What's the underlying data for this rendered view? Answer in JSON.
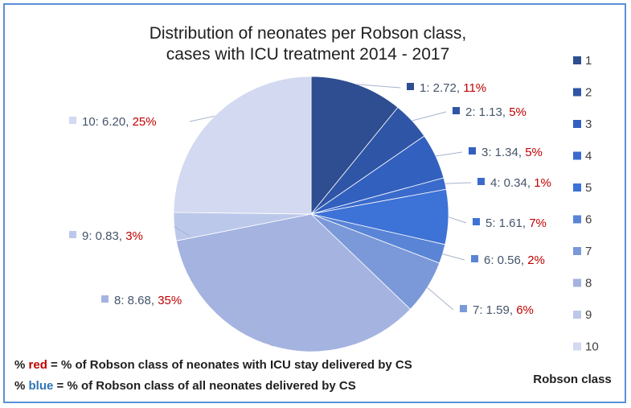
{
  "chart_data": {
    "type": "pie",
    "title_lines": [
      "Distribution of neonates per Robson class,",
      "cases with ICU treatment 2014 - 2017"
    ],
    "categories": [
      "1",
      "2",
      "3",
      "4",
      "5",
      "6",
      "7",
      "8",
      "9",
      "10"
    ],
    "values": [
      2.72,
      1.13,
      1.34,
      0.34,
      1.61,
      0.56,
      1.59,
      8.68,
      0.83,
      6.2
    ],
    "value_labels": [
      "2.72",
      "1.13",
      "1.34",
      "0.34",
      "1.61",
      "0.56",
      "1.59",
      "8.68",
      "0.83",
      "6.20"
    ],
    "percent_labels": [
      "11%",
      "5%",
      "5%",
      "1%",
      "7%",
      "2%",
      "6%",
      "35%",
      "3%",
      "25%"
    ],
    "colors": [
      "#2f4d91",
      "#2f55a6",
      "#3260bf",
      "#3a6bcc",
      "#3d72d6",
      "#5a85d6",
      "#7b99d8",
      "#a4b3e0",
      "#bcc8ea",
      "#d2d9f0"
    ],
    "label_value_color": "#44546a",
    "label_percent_color": "#c00000",
    "legend": {
      "title": "Robson class",
      "position": "right"
    },
    "notes": [
      {
        "prefix": "% ",
        "keyword": "red",
        "keyword_color": "#c00000",
        "suffix": " = % of Robson class of neonates with ICU stay delivered by CS"
      },
      {
        "prefix": "% ",
        "keyword": "blue",
        "keyword_color": "#2e75b6",
        "suffix": " = %  of Robson class of all neonates delivered by CS"
      }
    ]
  }
}
